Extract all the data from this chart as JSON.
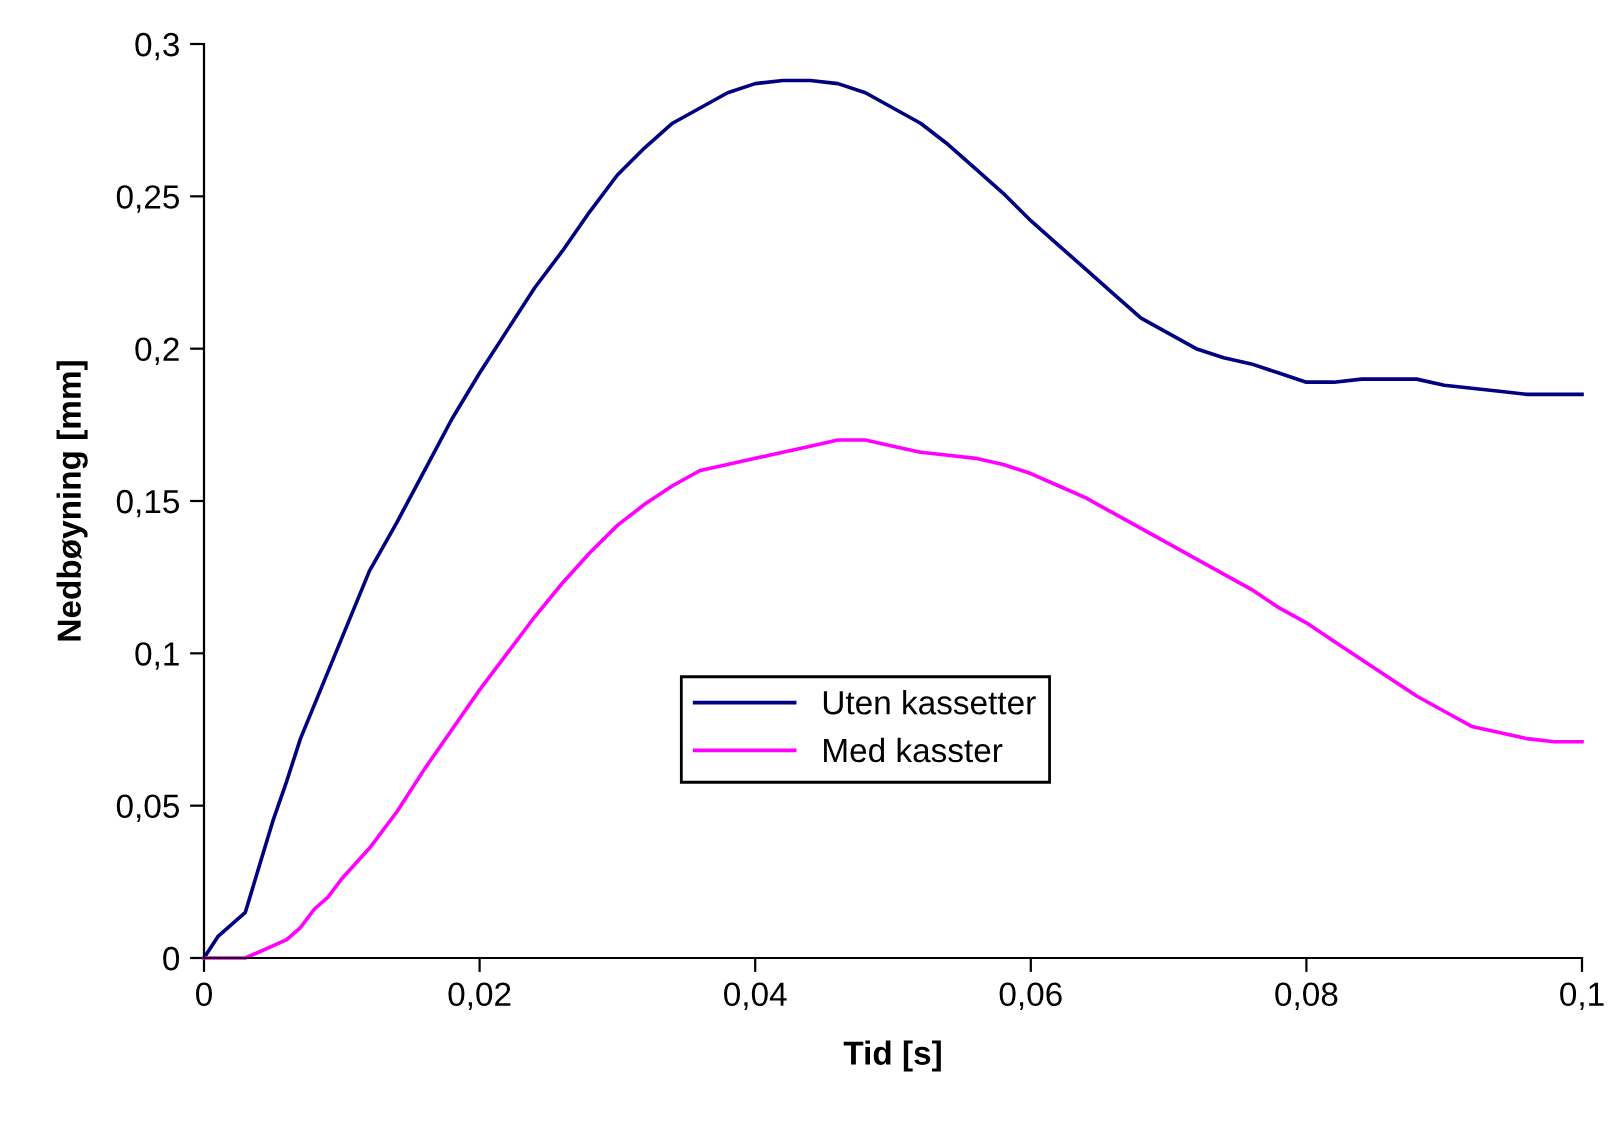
{
  "chart_data": {
    "type": "line",
    "xlabel": "Tid [s]",
    "ylabel": "Nedbøyning [mm]",
    "xlim": [
      0,
      0.1
    ],
    "ylim": [
      0,
      0.3
    ],
    "xticks": [
      0,
      {
        "value": 0.02,
        "label": "0,02"
      },
      {
        "value": 0.04,
        "label": "0,04"
      },
      {
        "value": 0.06,
        "label": "0,06"
      },
      {
        "value": 0.08,
        "label": "0,08"
      },
      {
        "value": 0.1,
        "label": "0,1"
      }
    ],
    "yticks": [
      0,
      {
        "value": 0.05,
        "label": "0,05"
      },
      {
        "value": 0.1,
        "label": "0,1"
      },
      {
        "value": 0.15,
        "label": "0,15"
      },
      {
        "value": 0.2,
        "label": "0,2"
      },
      {
        "value": 0.25,
        "label": "0,25"
      },
      {
        "value": 0.3,
        "label": "0,3"
      }
    ],
    "grid": false,
    "legend": "center",
    "marker": "none",
    "line_style": "solid",
    "series": [
      {
        "name": "Uten kassetter",
        "color": "#000080",
        "x": [
          0,
          0.001,
          0.003,
          0.004,
          0.005,
          0.006,
          0.007,
          0.008,
          0.01,
          0.012,
          0.014,
          0.016,
          0.018,
          0.02,
          0.022,
          0.024,
          0.026,
          0.028,
          0.03,
          0.032,
          0.034,
          0.036,
          0.038,
          0.04,
          0.042,
          0.044,
          0.046,
          0.048,
          0.05,
          0.052,
          0.054,
          0.056,
          0.058,
          0.06,
          0.062,
          0.064,
          0.066,
          0.068,
          0.07,
          0.072,
          0.074,
          0.076,
          0.078,
          0.08,
          0.082,
          0.084,
          0.086,
          0.088,
          0.09,
          0.092,
          0.094,
          0.096,
          0.1
        ],
        "values": [
          0,
          0.007,
          0.015,
          0.03,
          0.045,
          0.058,
          0.072,
          0.083,
          0.105,
          0.127,
          0.143,
          0.16,
          0.177,
          0.192,
          0.206,
          0.22,
          0.232,
          0.245,
          0.257,
          0.266,
          0.274,
          0.279,
          0.284,
          0.287,
          0.288,
          0.288,
          0.287,
          0.284,
          0.279,
          0.274,
          0.267,
          0.259,
          0.251,
          0.242,
          0.234,
          0.226,
          0.218,
          0.21,
          0.205,
          0.2,
          0.197,
          0.195,
          0.192,
          0.189,
          0.189,
          0.19,
          0.19,
          0.19,
          0.188,
          0.187,
          0.186,
          0.185,
          0.185
        ]
      },
      {
        "name": "Med kasster",
        "color": "#ff00ff",
        "x": [
          0,
          0.003,
          0.005,
          0.006,
          0.007,
          0.008,
          0.009,
          0.01,
          0.012,
          0.014,
          0.016,
          0.018,
          0.02,
          0.022,
          0.024,
          0.026,
          0.028,
          0.03,
          0.032,
          0.034,
          0.036,
          0.038,
          0.04,
          0.042,
          0.044,
          0.046,
          0.048,
          0.05,
          0.052,
          0.054,
          0.056,
          0.058,
          0.06,
          0.062,
          0.064,
          0.066,
          0.068,
          0.07,
          0.072,
          0.074,
          0.076,
          0.078,
          0.08,
          0.082,
          0.084,
          0.086,
          0.088,
          0.09,
          0.092,
          0.094,
          0.096,
          0.098,
          0.1
        ],
        "values": [
          0,
          0,
          0.004,
          0.006,
          0.01,
          0.016,
          0.02,
          0.026,
          0.036,
          0.048,
          0.062,
          0.075,
          0.088,
          0.1,
          0.112,
          0.123,
          0.133,
          0.142,
          0.149,
          0.155,
          0.16,
          0.162,
          0.164,
          0.166,
          0.168,
          0.17,
          0.17,
          0.168,
          0.166,
          0.165,
          0.164,
          0.162,
          0.159,
          0.155,
          0.151,
          0.146,
          0.141,
          0.136,
          0.131,
          0.126,
          0.121,
          0.115,
          0.11,
          0.104,
          0.098,
          0.092,
          0.086,
          0.081,
          0.076,
          0.074,
          0.072,
          0.071,
          0.071
        ]
      }
    ]
  }
}
